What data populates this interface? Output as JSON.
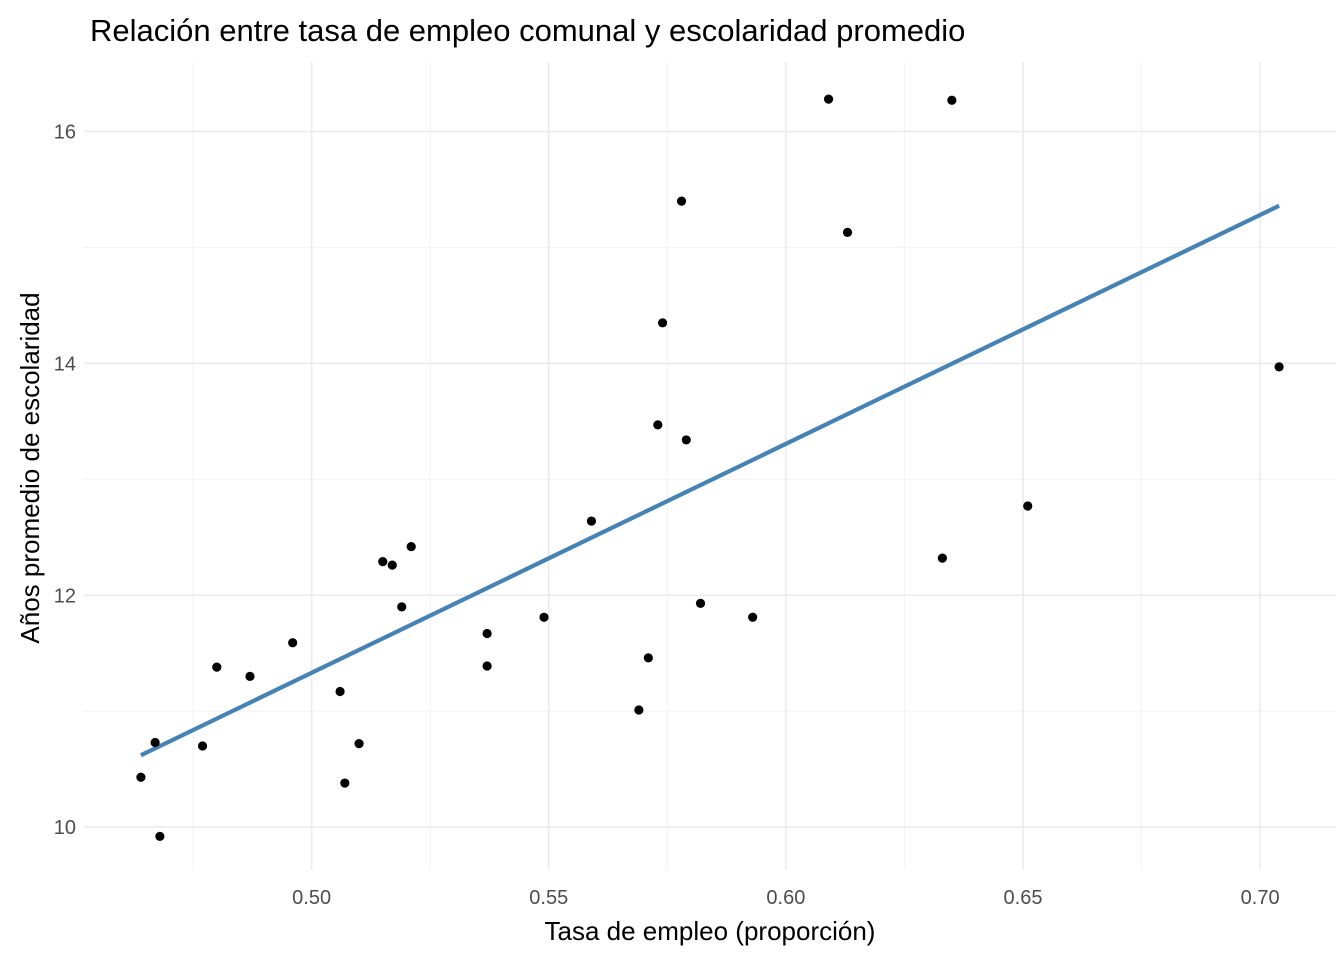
{
  "chart_data": {
    "type": "scatter",
    "title": "Relación entre tasa de empleo comunal y escolaridad promedio",
    "xlabel": "Tasa de empleo (proporción)",
    "ylabel": "Años promedio de escolaridad",
    "xlim": [
      0.452,
      0.716
    ],
    "ylim": [
      9.63,
      16.6
    ],
    "x_ticks": [
      0.5,
      0.55,
      0.6,
      0.65,
      0.7
    ],
    "x_tick_labels": [
      "0.50",
      "0.55",
      "0.60",
      "0.65",
      "0.70"
    ],
    "y_ticks": [
      10,
      12,
      14,
      16
    ],
    "y_tick_labels": [
      "10",
      "12",
      "14",
      "16"
    ],
    "grid": true,
    "legend": "none",
    "point_color": "#000000",
    "trend_color": "#4682b4",
    "points": [
      {
        "x": 0.464,
        "y": 10.43
      },
      {
        "x": 0.467,
        "y": 10.73
      },
      {
        "x": 0.468,
        "y": 9.92
      },
      {
        "x": 0.477,
        "y": 10.7
      },
      {
        "x": 0.48,
        "y": 11.38
      },
      {
        "x": 0.487,
        "y": 11.3
      },
      {
        "x": 0.496,
        "y": 11.59
      },
      {
        "x": 0.506,
        "y": 11.17
      },
      {
        "x": 0.507,
        "y": 10.38
      },
      {
        "x": 0.51,
        "y": 10.72
      },
      {
        "x": 0.515,
        "y": 12.29
      },
      {
        "x": 0.517,
        "y": 12.26
      },
      {
        "x": 0.519,
        "y": 11.9
      },
      {
        "x": 0.521,
        "y": 12.42
      },
      {
        "x": 0.537,
        "y": 11.67
      },
      {
        "x": 0.537,
        "y": 11.39
      },
      {
        "x": 0.549,
        "y": 11.81
      },
      {
        "x": 0.559,
        "y": 12.64
      },
      {
        "x": 0.569,
        "y": 11.01
      },
      {
        "x": 0.571,
        "y": 11.46
      },
      {
        "x": 0.573,
        "y": 13.47
      },
      {
        "x": 0.574,
        "y": 14.35
      },
      {
        "x": 0.578,
        "y": 15.4
      },
      {
        "x": 0.579,
        "y": 13.34
      },
      {
        "x": 0.582,
        "y": 11.93
      },
      {
        "x": 0.593,
        "y": 11.81
      },
      {
        "x": 0.609,
        "y": 16.28
      },
      {
        "x": 0.613,
        "y": 15.13
      },
      {
        "x": 0.633,
        "y": 12.32
      },
      {
        "x": 0.635,
        "y": 16.27
      },
      {
        "x": 0.651,
        "y": 12.77
      },
      {
        "x": 0.704,
        "y": 13.97
      }
    ],
    "trend_line": {
      "x": [
        0.464,
        0.704
      ],
      "y": [
        10.62,
        15.36
      ]
    }
  }
}
